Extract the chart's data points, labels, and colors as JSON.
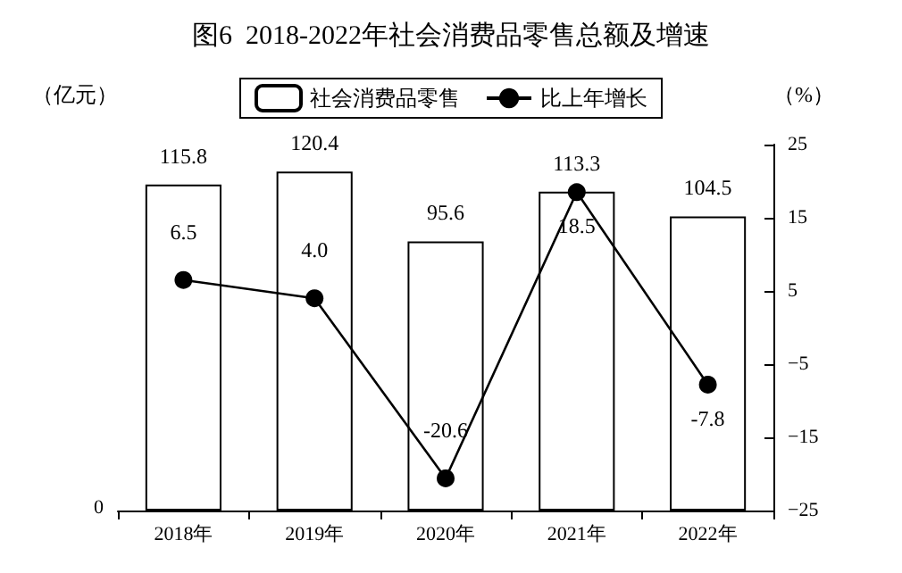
{
  "chart_data": {
    "type": "bar",
    "title": "图6  2018-2022年社会消费品零售总额及增速",
    "ylabel": "（亿元）",
    "y2label": "（%）",
    "categories": [
      "2018年",
      "2019年",
      "2020年",
      "2021年",
      "2022年"
    ],
    "series": [
      {
        "name": "社会消费品零售",
        "color": "#ffffff",
        "values": [
          115.8,
          120.4,
          95.6,
          113.3,
          104.5
        ],
        "value_labels": [
          "115.8",
          "120.4",
          "95.6",
          "113.3",
          "104.5"
        ]
      },
      {
        "name": "比上年增长",
        "type": "line",
        "axis": "y2",
        "color": "#000000",
        "values": [
          6.5,
          4.0,
          -20.6,
          18.5,
          -7.8
        ],
        "value_labels": [
          "6.5",
          "4.0",
          "-20.6",
          "18.5",
          "-7.8"
        ]
      }
    ],
    "ylim": [
      0,
      130
    ],
    "annotations": [
      "0"
    ],
    "y2lim": [
      -25,
      25
    ],
    "y2ticks": [
      {
        "value": -25,
        "label": "−25"
      },
      {
        "value": -15,
        "label": "−15"
      },
      {
        "value": -5,
        "label": "−5"
      },
      5,
      15,
      25
    ],
    "legend": "top",
    "marker": "circle",
    "grid": false
  }
}
